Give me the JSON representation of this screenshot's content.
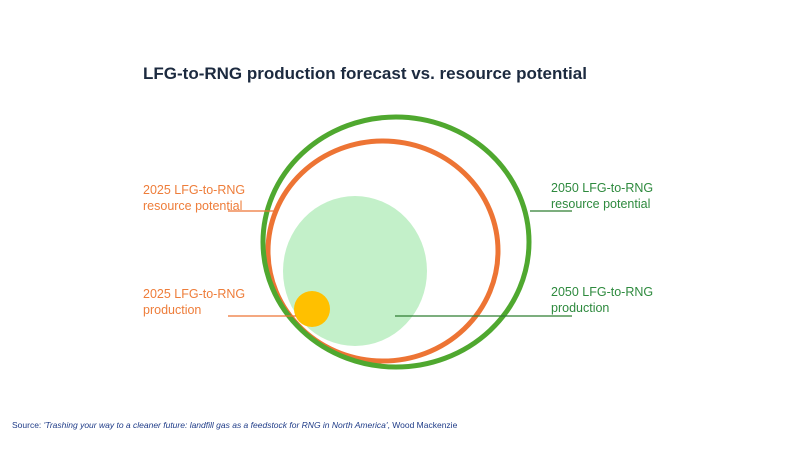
{
  "title": "LFG-to-RNG production forecast vs. resource potential",
  "labels": {
    "potential_2025": {
      "line1": "2025 LFG-to-RNG",
      "line2": "resource potential"
    },
    "production_2025": {
      "line1": "2025 LFG-to-RNG",
      "line2": "production"
    },
    "potential_2050": {
      "line1": "2050 LFG-to-RNG",
      "line2": "resource potential"
    },
    "production_2050": {
      "line1": "2050 LFG-to-RNG",
      "line2": "production"
    }
  },
  "source": {
    "prefix": "Source: ",
    "title": "'Trashing your way to a cleaner future:  landfill gas as a feedstock  for RNG in North America'",
    "suffix": ",  Wood Mackenzie"
  },
  "colors": {
    "potential_2050": "#4fa82f",
    "potential_2025": "#ed7434",
    "production_2050": "#c3f0c9",
    "production_2025": "#ffc000"
  }
}
